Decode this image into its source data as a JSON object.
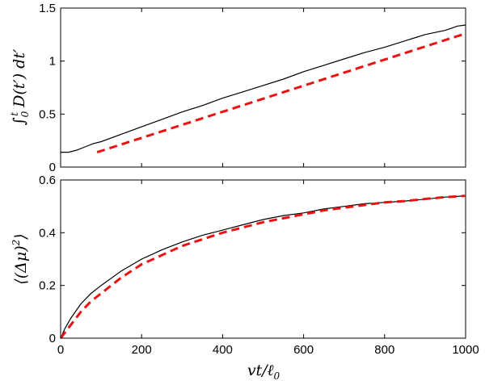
{
  "chart_data": [
    {
      "type": "line",
      "panel": "top",
      "ylabel_parts": [
        "∫",
        "0",
        "t",
        " D(t′) dt′"
      ],
      "xlim": [
        0,
        1000
      ],
      "ylim": [
        0,
        1.5
      ],
      "xticks": [],
      "yticks": [
        0,
        0.5,
        1,
        1.5
      ],
      "ytick_labels": [
        "0",
        "0.5",
        "1",
        "1.5"
      ],
      "grid": false,
      "series": [
        {
          "style": "solid",
          "color": "#000000",
          "x": [
            0,
            20,
            40,
            60,
            80,
            100,
            150,
            200,
            250,
            300,
            350,
            400,
            450,
            500,
            550,
            600,
            650,
            700,
            750,
            800,
            850,
            900,
            950,
            980,
            1000
          ],
          "y": [
            0.14,
            0.14,
            0.16,
            0.19,
            0.22,
            0.24,
            0.31,
            0.38,
            0.45,
            0.52,
            0.58,
            0.65,
            0.71,
            0.77,
            0.83,
            0.9,
            0.96,
            1.02,
            1.08,
            1.13,
            1.19,
            1.25,
            1.29,
            1.33,
            1.34
          ]
        },
        {
          "style": "dashed",
          "color": "#ee1111",
          "x": [
            90,
            1000
          ],
          "y": [
            0.14,
            1.26
          ]
        }
      ]
    },
    {
      "type": "line",
      "panel": "bottom",
      "ylabel_parts": [
        "⟨(Δμ)",
        "2",
        "⟩"
      ],
      "xlabel_parts": [
        "vt/ℓ",
        "0"
      ],
      "xlim": [
        0,
        1000
      ],
      "ylim": [
        0,
        0.6
      ],
      "xticks": [
        0,
        200,
        400,
        600,
        800,
        1000
      ],
      "xtick_labels": [
        "0",
        "200",
        "400",
        "600",
        "800",
        "1000"
      ],
      "yticks": [
        0,
        0.2,
        0.4,
        0.6
      ],
      "ytick_labels": [
        "0",
        "0.2",
        "0.4",
        "0.6"
      ],
      "grid": false,
      "series": [
        {
          "style": "solid",
          "color": "#000000",
          "x": [
            0,
            10,
            25,
            50,
            75,
            100,
            150,
            200,
            250,
            300,
            350,
            400,
            450,
            500,
            550,
            600,
            650,
            700,
            750,
            800,
            850,
            900,
            950,
            1000
          ],
          "y": [
            0,
            0.035,
            0.075,
            0.13,
            0.17,
            0.2,
            0.255,
            0.3,
            0.335,
            0.365,
            0.39,
            0.41,
            0.43,
            0.45,
            0.465,
            0.475,
            0.49,
            0.5,
            0.51,
            0.515,
            0.52,
            0.527,
            0.535,
            0.54
          ]
        },
        {
          "style": "dashed",
          "color": "#ee1111",
          "x": [
            0,
            10,
            25,
            50,
            75,
            100,
            150,
            200,
            250,
            300,
            350,
            400,
            450,
            500,
            550,
            600,
            650,
            700,
            750,
            800,
            850,
            900,
            950,
            1000
          ],
          "y": [
            0,
            0.02,
            0.05,
            0.1,
            0.14,
            0.17,
            0.23,
            0.28,
            0.315,
            0.35,
            0.375,
            0.4,
            0.42,
            0.44,
            0.455,
            0.47,
            0.485,
            0.495,
            0.505,
            0.515,
            0.52,
            0.528,
            0.535,
            0.54
          ]
        }
      ]
    }
  ]
}
